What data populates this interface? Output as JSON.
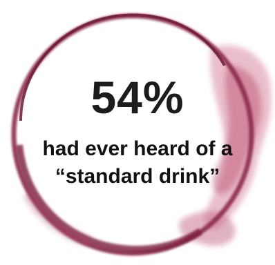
{
  "stat": {
    "value": "54%"
  },
  "caption": {
    "line1": "had ever heard of a",
    "line2": "“standard drink”"
  },
  "colors": {
    "wine_dark": "#7a1f3d",
    "wine_mid": "#a83a5a",
    "wine_light": "#d98aa0",
    "text": "#1c1c1c"
  },
  "decoration": {
    "ring_icon": "wine-glass-stain-ring"
  }
}
